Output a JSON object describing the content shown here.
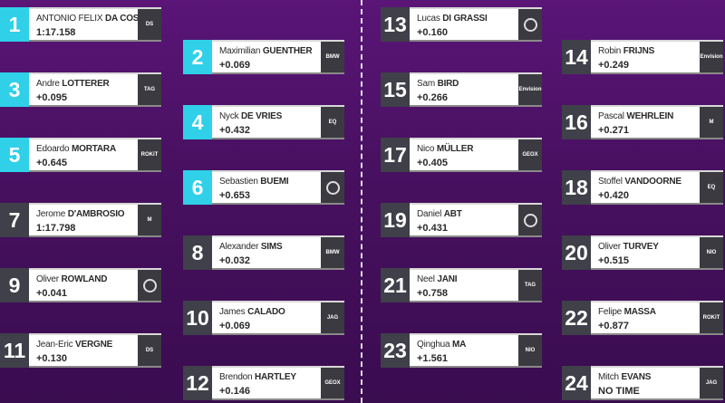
{
  "grid": [
    {
      "pos": "1",
      "first": "ANTONIO FELIX",
      "last": "DA COSTA",
      "gap": "1:17.158",
      "team": "ds-techeetah-logo",
      "logo_text": "DS",
      "highlight": true
    },
    {
      "pos": "2",
      "first": "Maximilian",
      "last": "GUENTHER",
      "gap": "+0.069",
      "team": "bmw-i-andretti-logo",
      "logo_text": "BMW",
      "highlight": true
    },
    {
      "pos": "3",
      "first": "Andre",
      "last": "LOTTERER",
      "gap": "+0.095",
      "team": "porsche-logo",
      "logo_text": "TAG",
      "highlight": true
    },
    {
      "pos": "4",
      "first": "Nyck",
      "last": "DE VRIES",
      "gap": "+0.432",
      "team": "mercedes-eq-logo",
      "logo_text": "EQ",
      "highlight": true
    },
    {
      "pos": "5",
      "first": "Edoardo",
      "last": "MORTARA",
      "gap": "+0.645",
      "team": "venturi-logo",
      "logo_text": "ROKiT",
      "highlight": true
    },
    {
      "pos": "6",
      "first": "Sebastien",
      "last": "BUEMI",
      "gap": "+0.653",
      "team": "nissan-edams-logo",
      "logo_text": "",
      "highlight": true
    },
    {
      "pos": "7",
      "first": "Jerome",
      "last": "D'AMBROSIO",
      "gap": "1:17.798",
      "team": "mahindra-logo",
      "logo_text": "M",
      "highlight": false
    },
    {
      "pos": "8",
      "first": "Alexander",
      "last": "SIMS",
      "gap": "+0.032",
      "team": "bmw-i-andretti-logo",
      "logo_text": "BMW",
      "highlight": false
    },
    {
      "pos": "9",
      "first": "Oliver",
      "last": "ROWLAND",
      "gap": "+0.041",
      "team": "nissan-edams-logo",
      "logo_text": "",
      "highlight": false
    },
    {
      "pos": "10",
      "first": "James",
      "last": "CALADO",
      "gap": "+0.069",
      "team": "jaguar-logo",
      "logo_text": "JAG",
      "highlight": false
    },
    {
      "pos": "11",
      "first": "Jean-Eric",
      "last": "VERGNE",
      "gap": "+0.130",
      "team": "ds-techeetah-logo",
      "logo_text": "DS",
      "highlight": false
    },
    {
      "pos": "12",
      "first": "Brendon",
      "last": "HARTLEY",
      "gap": "+0.146",
      "team": "geox-dragon-logo",
      "logo_text": "GEOX",
      "highlight": false
    },
    {
      "pos": "13",
      "first": "Lucas",
      "last": "DI GRASSI",
      "gap": "+0.160",
      "team": "audi-logo",
      "logo_text": "",
      "highlight": false
    },
    {
      "pos": "14",
      "first": "Robin",
      "last": "FRIJNS",
      "gap": "+0.249",
      "team": "envision-virgin-logo",
      "logo_text": "Envision",
      "highlight": false
    },
    {
      "pos": "15",
      "first": "Sam",
      "last": "BIRD",
      "gap": "+0.266",
      "team": "envision-virgin-logo",
      "logo_text": "Envision",
      "highlight": false
    },
    {
      "pos": "16",
      "first": "Pascal",
      "last": "WEHRLEIN",
      "gap": "+0.271",
      "team": "mahindra-logo",
      "logo_text": "M",
      "highlight": false
    },
    {
      "pos": "17",
      "first": "Nico",
      "last": "MÜLLER",
      "gap": "+0.405",
      "team": "geox-dragon-logo",
      "logo_text": "GEOX",
      "highlight": false
    },
    {
      "pos": "18",
      "first": "Stoffel",
      "last": "VANDOORNE",
      "gap": "+0.420",
      "team": "mercedes-eq-logo",
      "logo_text": "EQ",
      "highlight": false
    },
    {
      "pos": "19",
      "first": "Daniel",
      "last": "ABT",
      "gap": "+0.431",
      "team": "audi-logo",
      "logo_text": "",
      "highlight": false
    },
    {
      "pos": "20",
      "first": "Oliver",
      "last": "TURVEY",
      "gap": "+0.515",
      "team": "nio-logo",
      "logo_text": "NIO",
      "highlight": false
    },
    {
      "pos": "21",
      "first": "Neel",
      "last": "JANI",
      "gap": "+0.758",
      "team": "porsche-logo",
      "logo_text": "TAG",
      "highlight": false
    },
    {
      "pos": "22",
      "first": "Felipe",
      "last": "MASSA",
      "gap": "+0.877",
      "team": "venturi-logo",
      "logo_text": "ROKiT",
      "highlight": false
    },
    {
      "pos": "23",
      "first": "Qinghua",
      "last": "MA",
      "gap": "+1.561",
      "team": "nio-logo",
      "logo_text": "NIO",
      "highlight": false
    },
    {
      "pos": "24",
      "first": "Mitch",
      "last": "EVANS",
      "gap": "NO TIME",
      "team": "jaguar-logo",
      "logo_text": "JAG",
      "highlight": false
    }
  ],
  "colors": {
    "background": "#4a1163",
    "highlight": "#2fd0e8",
    "position_box": "#3f4049",
    "card": "#ffffff",
    "logo_box": "#3a3a40"
  }
}
